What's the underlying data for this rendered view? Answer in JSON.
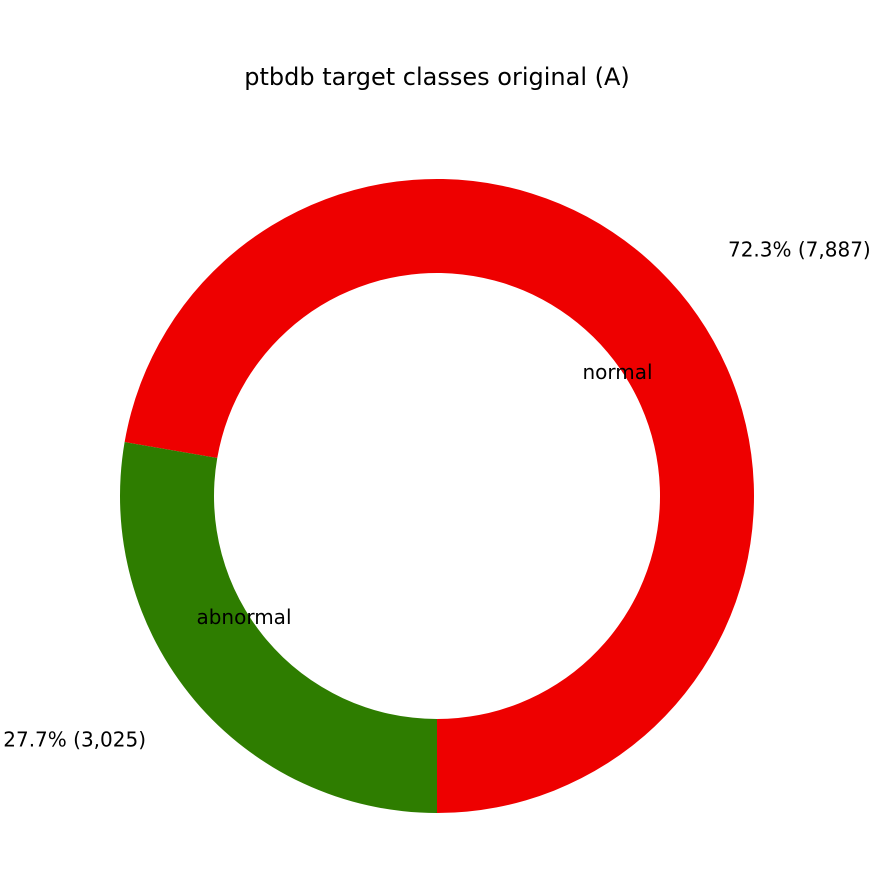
{
  "chart_data": {
    "type": "pie",
    "title": "ptbdb target classes original (A)",
    "donut": true,
    "slices": [
      {
        "label": "normal",
        "value": 7887,
        "percent_label": "72.3% (7,887)",
        "color": "#ee0000"
      },
      {
        "label": "abnormal",
        "value": 3025,
        "percent_label": "27.7% (3,025)",
        "color": "#2e7d00"
      }
    ]
  }
}
